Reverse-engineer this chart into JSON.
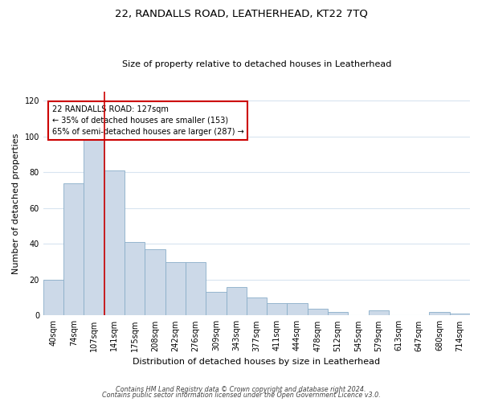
{
  "title": "22, RANDALLS ROAD, LEATHERHEAD, KT22 7TQ",
  "subtitle": "Size of property relative to detached houses in Leatherhead",
  "xlabel": "Distribution of detached houses by size in Leatherhead",
  "ylabel": "Number of detached properties",
  "bar_color": "#ccd9e8",
  "bar_edge_color": "#8aaec8",
  "grid_color": "#d8e4f0",
  "annotation_line_color": "#cc0000",
  "annotation_box_color": "#cc0000",
  "bin_labels": [
    "40sqm",
    "74sqm",
    "107sqm",
    "141sqm",
    "175sqm",
    "208sqm",
    "242sqm",
    "276sqm",
    "309sqm",
    "343sqm",
    "377sqm",
    "411sqm",
    "444sqm",
    "478sqm",
    "512sqm",
    "545sqm",
    "579sqm",
    "613sqm",
    "647sqm",
    "680sqm",
    "714sqm"
  ],
  "bar_heights": [
    20,
    74,
    101,
    81,
    41,
    37,
    30,
    30,
    13,
    16,
    10,
    7,
    7,
    4,
    2,
    0,
    3,
    0,
    0,
    2,
    1
  ],
  "red_line_x": 2.5,
  "annotation_text": "22 RANDALLS ROAD: 127sqm\n← 35% of detached houses are smaller (153)\n65% of semi-detached houses are larger (287) →",
  "ylim": [
    0,
    125
  ],
  "yticks": [
    0,
    20,
    40,
    60,
    80,
    100,
    120
  ],
  "footnote1": "Contains HM Land Registry data © Crown copyright and database right 2024.",
  "footnote2": "Contains public sector information licensed under the Open Government Licence v3.0.",
  "background_color": "#ffffff"
}
